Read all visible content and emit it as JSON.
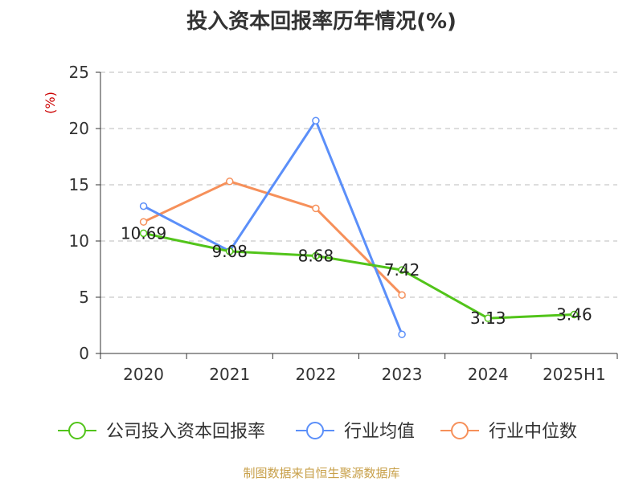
{
  "chart_data": {
    "type": "line",
    "title": "投入资本回报率历年情况(%)",
    "ylabel": "(%)",
    "categories": [
      "2020",
      "2021",
      "2022",
      "2023",
      "2024",
      "2025H1"
    ],
    "ylim": [
      0,
      25
    ],
    "yticks": [
      0,
      5,
      10,
      15,
      20,
      25
    ],
    "grid": true,
    "legend_position": "bottom",
    "series": [
      {
        "name": "公司投入资本回报率",
        "color": "#52c41a",
        "values": [
          10.69,
          9.08,
          8.68,
          7.42,
          3.13,
          3.46
        ],
        "show_labels": true
      },
      {
        "name": "行业均值",
        "color": "#5b8ff9",
        "values": [
          13.1,
          9.1,
          20.7,
          1.7,
          null,
          null
        ],
        "show_labels": false
      },
      {
        "name": "行业中位数",
        "color": "#f6905a",
        "values": [
          11.7,
          15.3,
          12.9,
          5.2,
          null,
          null
        ],
        "show_labels": false
      }
    ],
    "unit_color": "#cc0000"
  },
  "footer": "制图数据来自恒生聚源数据库"
}
